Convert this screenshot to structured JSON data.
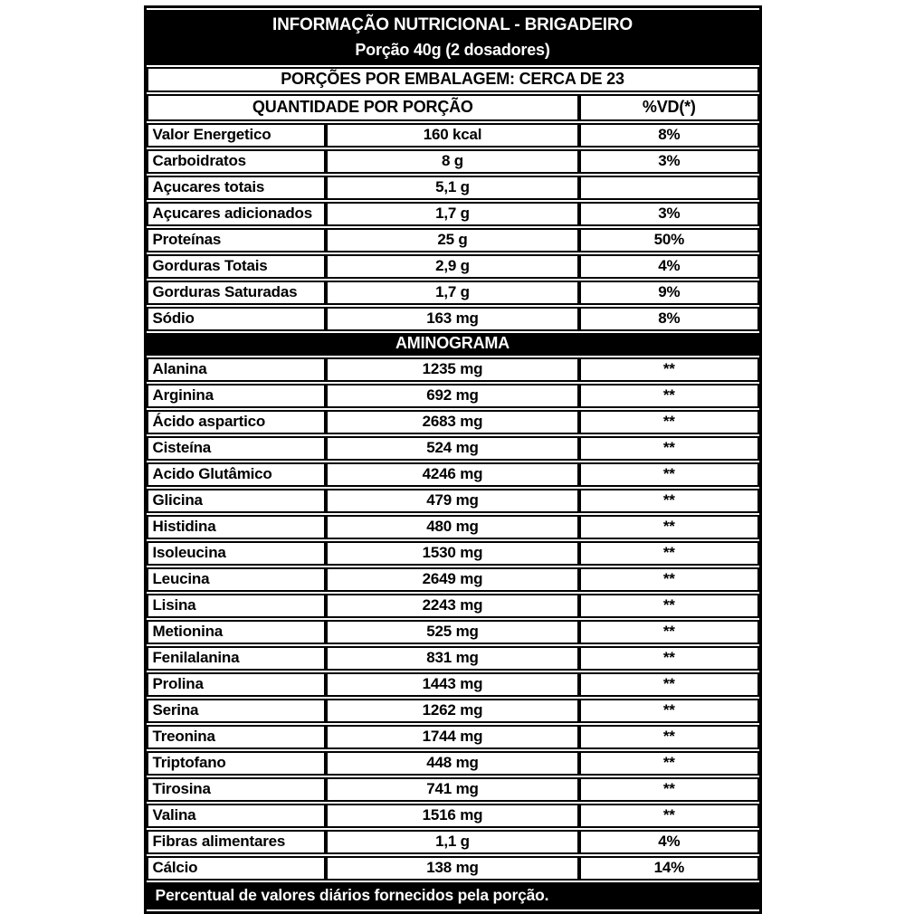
{
  "table": {
    "title": "INFORMAÇÃO NUTRICIONAL - BRIGADEIRO",
    "subtitle": "Porção 40g (2 dosadores)",
    "servings_line": "PORÇÕES POR EMBALAGEM: CERCA DE 23",
    "col_header_quantity": "QUANTIDADE POR PORÇÃO",
    "col_header_dv": "%VD(*)",
    "nutrients": [
      {
        "label": "Valor Energetico",
        "amount": "160 kcal",
        "dv": "8%"
      },
      {
        "label": "Carboidratos",
        "amount": "8 g",
        "dv": "3%"
      },
      {
        "label": "Açucares totais",
        "amount": "5,1 g",
        "dv": ""
      },
      {
        "label": "Açucares adicionados",
        "amount": "1,7 g",
        "dv": "3%"
      },
      {
        "label": "Proteínas",
        "amount": "25 g",
        "dv": "50%"
      },
      {
        "label": "Gorduras Totais",
        "amount": "2,9 g",
        "dv": "4%"
      },
      {
        "label": "Gorduras Saturadas",
        "amount": "1,7 g",
        "dv": "9%"
      },
      {
        "label": "Sódio",
        "amount": "163 mg",
        "dv": "8%"
      }
    ],
    "aminogram_header": "AMINOGRAMA",
    "aminogram": [
      {
        "label": "Alanina",
        "amount": "1235 mg",
        "dv": "**"
      },
      {
        "label": "Arginina",
        "amount": "692 mg",
        "dv": "**"
      },
      {
        "label": "Ácido aspartico",
        "amount": "2683 mg",
        "dv": "**"
      },
      {
        "label": "Cisteína",
        "amount": "524 mg",
        "dv": "**"
      },
      {
        "label": "Acido Glutâmico",
        "amount": "4246 mg",
        "dv": "**"
      },
      {
        "label": "Glicina",
        "amount": "479 mg",
        "dv": "**"
      },
      {
        "label": "Histidina",
        "amount": "480 mg",
        "dv": "**"
      },
      {
        "label": "Isoleucina",
        "amount": "1530 mg",
        "dv": "**"
      },
      {
        "label": "Leucina",
        "amount": "2649 mg",
        "dv": "**"
      },
      {
        "label": "Lisina",
        "amount": "2243 mg",
        "dv": "**"
      },
      {
        "label": "Metionina",
        "amount": "525 mg",
        "dv": "**"
      },
      {
        "label": "Fenilalanina",
        "amount": "831 mg",
        "dv": "**"
      },
      {
        "label": "Prolina",
        "amount": "1443 mg",
        "dv": "**"
      },
      {
        "label": "Serina",
        "amount": "1262 mg",
        "dv": "**"
      },
      {
        "label": "Treonina",
        "amount": "1744 mg",
        "dv": "**"
      },
      {
        "label": "Triptofano",
        "amount": "448 mg",
        "dv": "**"
      },
      {
        "label": "Tirosina",
        "amount": "741 mg",
        "dv": "**"
      },
      {
        "label": "Valina",
        "amount": "1516 mg",
        "dv": "**"
      },
      {
        "label": "Fibras alimentares",
        "amount": "1,1 g",
        "dv": "4%"
      },
      {
        "label": "Cálcio",
        "amount": "138 mg",
        "dv": "14%"
      }
    ],
    "footnote": "Percentual de valores diários fornecidos pela porção.",
    "colors": {
      "header_bg": "#000000",
      "header_text": "#ffffff",
      "cell_bg": "#ffffff",
      "cell_text": "#000000",
      "border": "#000000"
    }
  }
}
